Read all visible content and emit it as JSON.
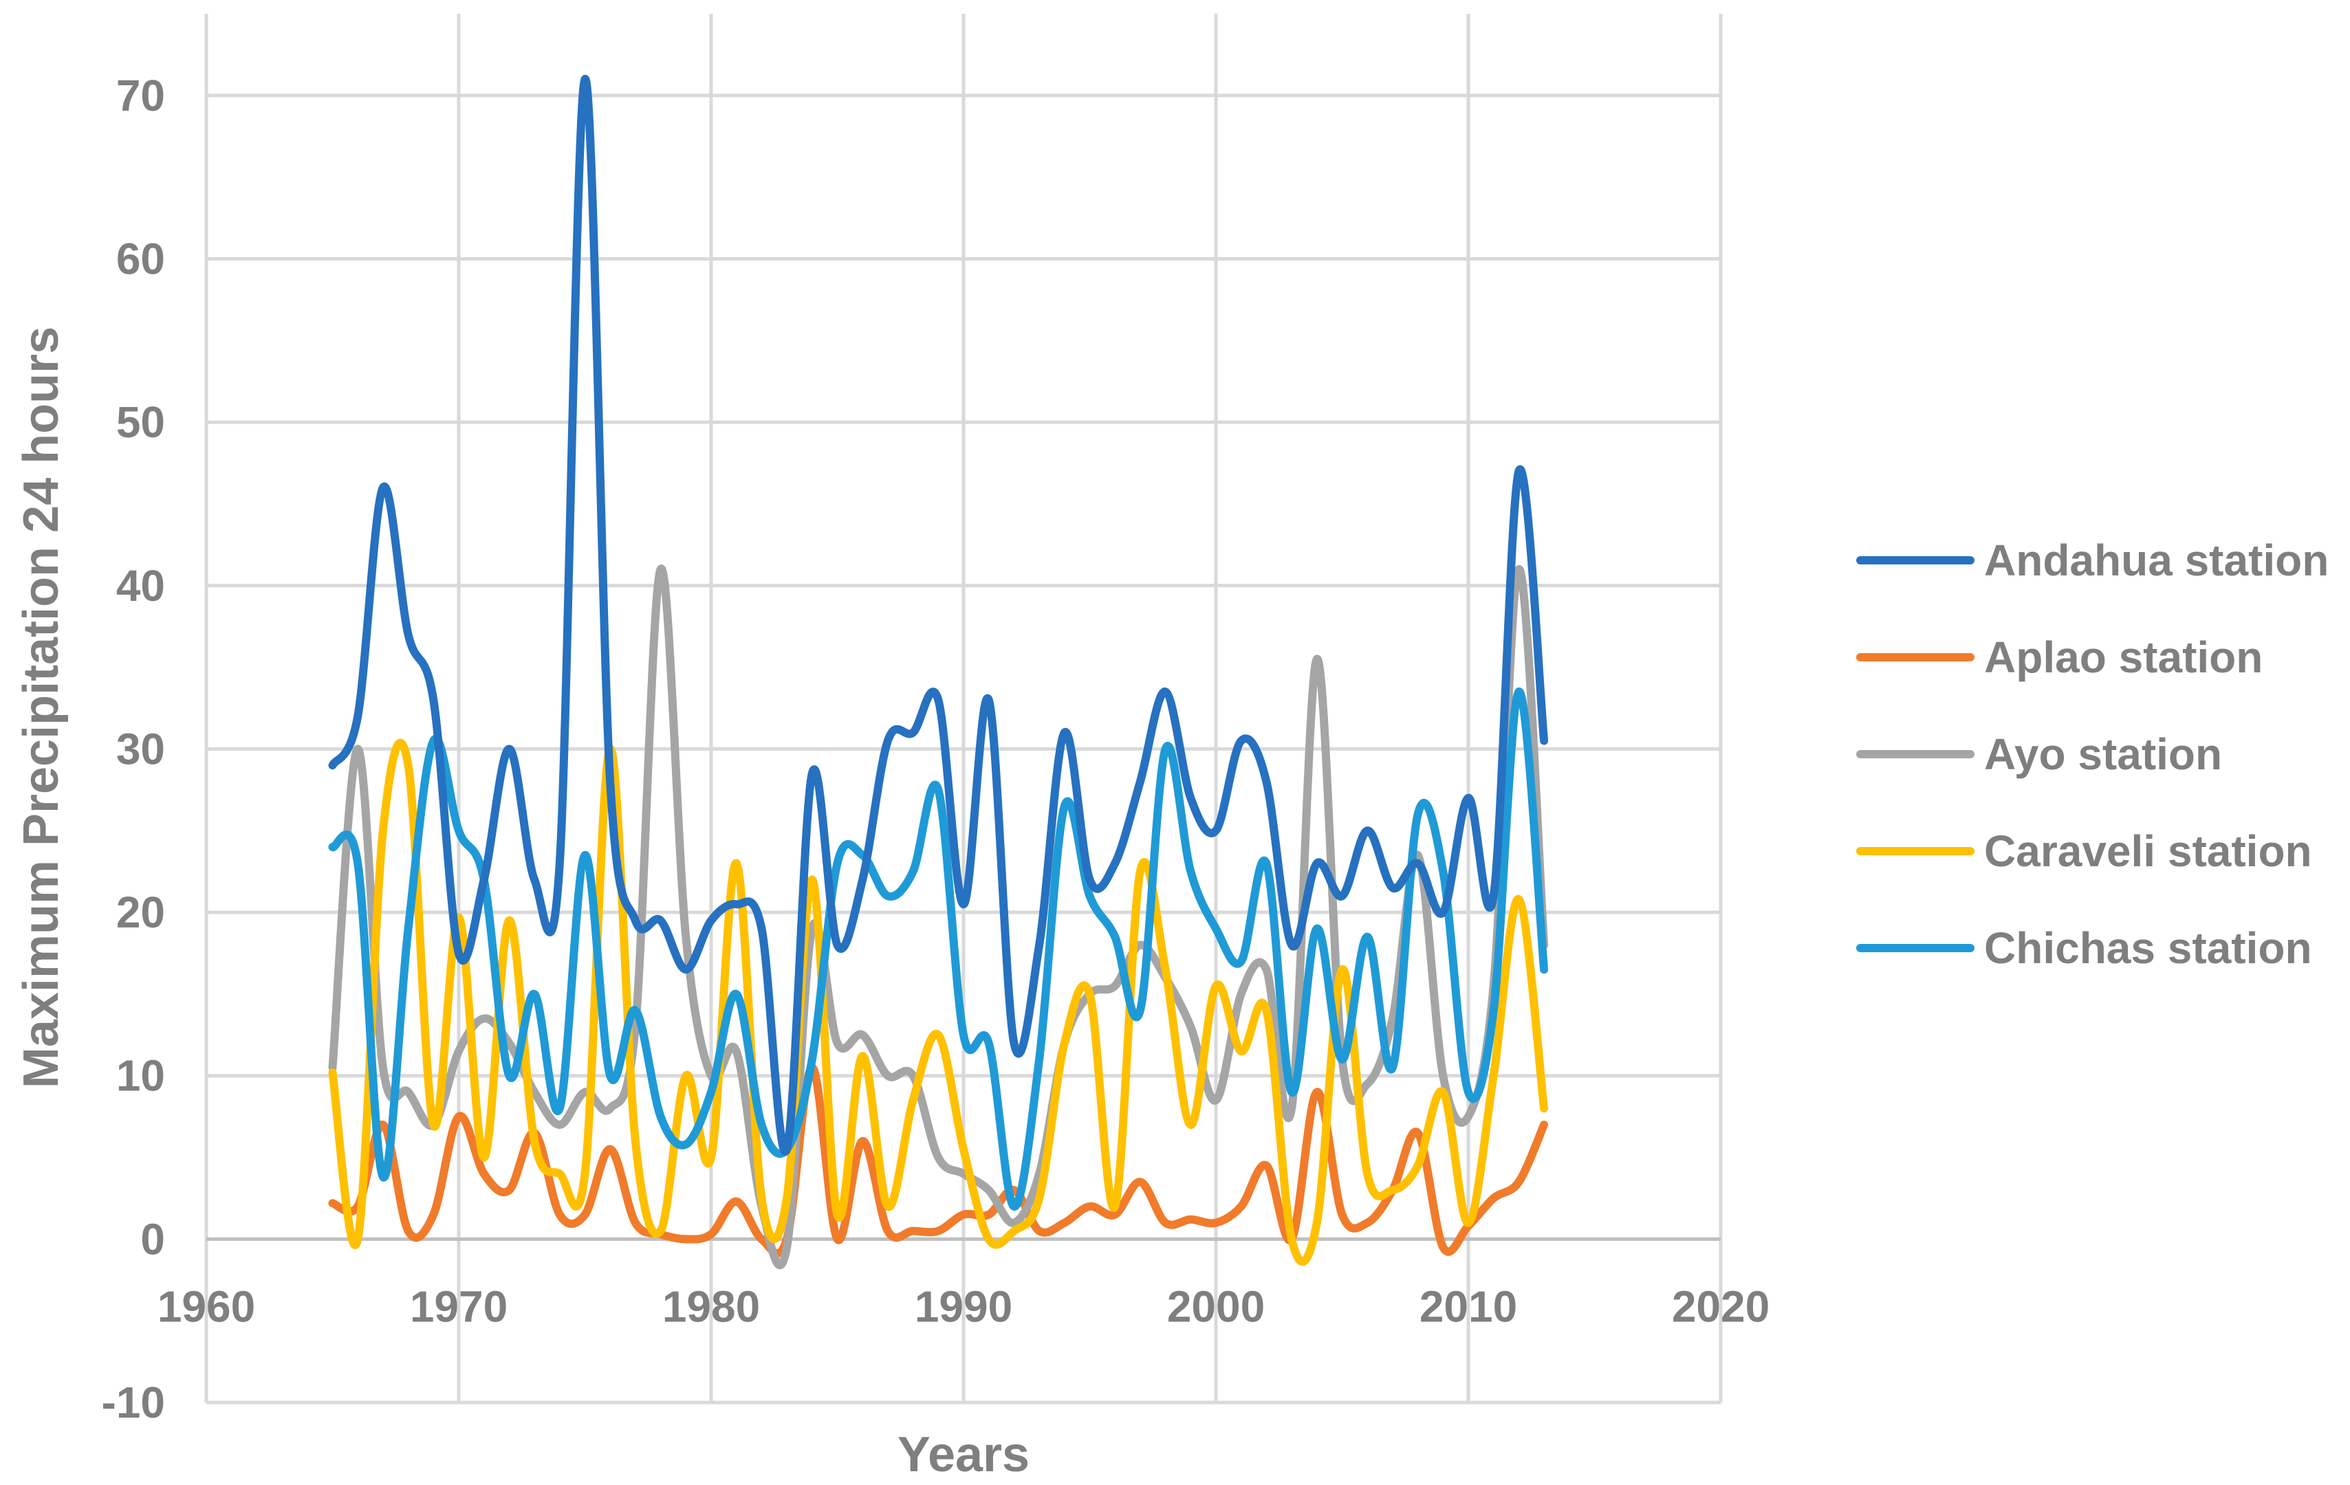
{
  "chart_data": {
    "type": "line",
    "title": "",
    "xlabel": "Years",
    "ylabel": "Maximum Precipitation 24 hours",
    "xlim": [
      1960,
      2020
    ],
    "ylim": [
      -10,
      75
    ],
    "xticks": [
      1960,
      1970,
      1980,
      1990,
      2000,
      2010,
      2020
    ],
    "yticks": [
      -10,
      0,
      10,
      20,
      30,
      40,
      50,
      60,
      70
    ],
    "grid": true,
    "legend_position": "right",
    "x": [
      1965,
      1966,
      1967,
      1968,
      1969,
      1970,
      1971,
      1972,
      1973,
      1974,
      1975,
      1976,
      1977,
      1978,
      1979,
      1980,
      1981,
      1982,
      1983,
      1984,
      1985,
      1986,
      1987,
      1988,
      1989,
      1990,
      1991,
      1992,
      1993,
      1994,
      1995,
      1996,
      1997,
      1998,
      1999,
      2000,
      2001,
      2002,
      2003,
      2004,
      2005,
      2006,
      2007,
      2008,
      2009,
      2010,
      2011,
      2012,
      2013
    ],
    "series": [
      {
        "name": "Andahua station",
        "color": "#2671c0",
        "values": [
          29,
          32,
          46,
          37,
          33,
          17.5,
          22,
          30,
          22,
          23,
          71,
          28,
          19.5,
          19.5,
          16.5,
          19.5,
          20.5,
          19,
          5.5,
          28.5,
          18,
          22,
          30.5,
          31,
          33,
          20.5,
          33,
          12,
          18,
          31,
          22,
          23,
          28,
          33.5,
          27,
          25,
          30.5,
          28,
          18,
          23,
          21,
          25,
          21.5,
          23,
          20,
          27,
          21,
          47,
          30.5
        ]
      },
      {
        "name": "Aplao station",
        "color": "#f07b2b",
        "values": [
          2.2,
          2,
          7,
          0.5,
          1.5,
          7.5,
          4,
          3,
          6.5,
          1.5,
          1.5,
          5.5,
          1,
          0.3,
          0,
          0.3,
          2.3,
          0,
          0,
          10.5,
          0,
          6,
          0.5,
          0.5,
          0.5,
          1.5,
          1.5,
          3,
          0.5,
          1,
          2,
          1.5,
          3.5,
          1,
          1.2,
          1,
          2,
          4.5,
          0,
          9,
          1.5,
          1,
          3,
          6.5,
          -0.5,
          0.8,
          2.5,
          3.5,
          7
        ]
      },
      {
        "name": "Ayo station",
        "color": "#a5a5a5",
        "values": [
          10.5,
          30,
          10.5,
          9,
          7,
          11.5,
          13.5,
          12,
          9,
          7,
          9,
          8,
          13,
          41,
          18.5,
          10,
          11.5,
          2,
          -0.5,
          19,
          12,
          12.5,
          10,
          10,
          5,
          4,
          3,
          1,
          4,
          12,
          15,
          15.5,
          18,
          16,
          13,
          8.5,
          15,
          16.5,
          8,
          35.5,
          11,
          9.5,
          13.5,
          23.5,
          10,
          7.5,
          15.5,
          41,
          18
        ]
      },
      {
        "name": "Caraveli station",
        "color": "#ffc000",
        "values": [
          10.2,
          0,
          25,
          29,
          7,
          19.7,
          5,
          19.5,
          6,
          4,
          4,
          30,
          6,
          0.5,
          10,
          5,
          23,
          2.5,
          2.5,
          22,
          1.5,
          11.2,
          2,
          8.5,
          12.5,
          5.5,
          0,
          0.5,
          2.5,
          12,
          15,
          2,
          22.5,
          16.5,
          7,
          15.5,
          11.5,
          14,
          0,
          1,
          16.5,
          4,
          3,
          4.5,
          9,
          1,
          10,
          20.8,
          8
        ]
      },
      {
        "name": "Chichas station",
        "color": "#1f9ad6",
        "values": [
          24,
          23,
          3.8,
          19,
          30.5,
          25,
          22,
          10,
          15,
          8,
          23.5,
          10,
          14,
          7.5,
          5.8,
          9,
          15,
          7,
          5.5,
          11,
          23,
          23.5,
          21,
          22.5,
          27.5,
          12.5,
          12,
          2,
          11,
          26.5,
          21,
          18.5,
          14,
          30,
          22.5,
          19,
          17,
          23,
          9,
          19,
          11,
          18.5,
          10.5,
          26,
          22.5,
          9,
          14,
          33.5,
          16.5
        ]
      }
    ]
  }
}
